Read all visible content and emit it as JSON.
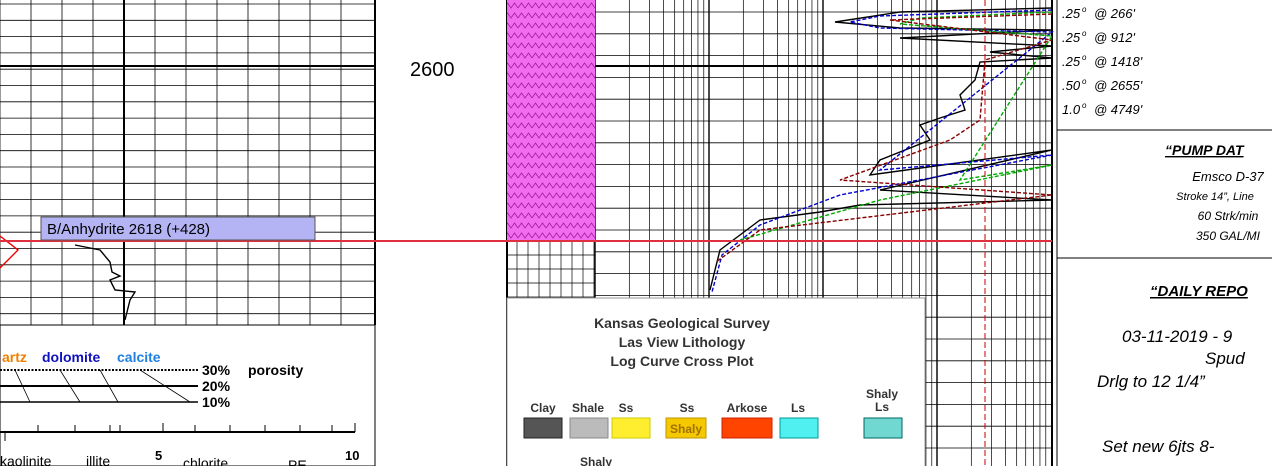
{
  "depth_label": "2600",
  "marker": "B/Anhydrite  2618 (+428)",
  "legend": {
    "title": [
      "Kansas Geological Survey",
      "Las View Lithology",
      "Log Curve Cross Plot"
    ],
    "items": [
      "Clay",
      "Shale",
      "Ss",
      "Ss",
      "Arkose",
      "Ls",
      "Shaly",
      "Ls"
    ],
    "swatch_text": "Shaly",
    "below": "Shaly"
  },
  "crossplot": {
    "minerals": [
      "artz",
      "dolomite",
      "calcite"
    ],
    "porosity": [
      "30%",
      "20%",
      "10%"
    ],
    "porosity_label": "porosity",
    "scale": [
      "kaolinite",
      "illite",
      "5",
      "chlorite",
      "PE",
      "10"
    ]
  },
  "deviation": [
    {
      "angle": ".25",
      "degree": "o",
      "depth": "@  266'"
    },
    {
      "angle": ".25",
      "degree": "o",
      "depth": "@  912'"
    },
    {
      "angle": ".25",
      "degree": "o",
      "depth": "@  1418'"
    },
    {
      "angle": ".50",
      "degree": "o",
      "depth": "@  2655'"
    },
    {
      "angle": "1.0",
      "degree": "o",
      "depth": "@  4749'"
    }
  ],
  "pump": {
    "title": "“PUMP DAT",
    "lines": [
      "Emsco D-37",
      "Stroke 14”, Line",
      "60 Strk/min",
      "350  GAL/MI"
    ]
  },
  "daily": {
    "title": "“DAILY REPO",
    "lines": [
      "03-11-2019 - 9",
      "Spud",
      "Drlg to 12 1/4”",
      "Set new  6jts  8-"
    ]
  }
}
